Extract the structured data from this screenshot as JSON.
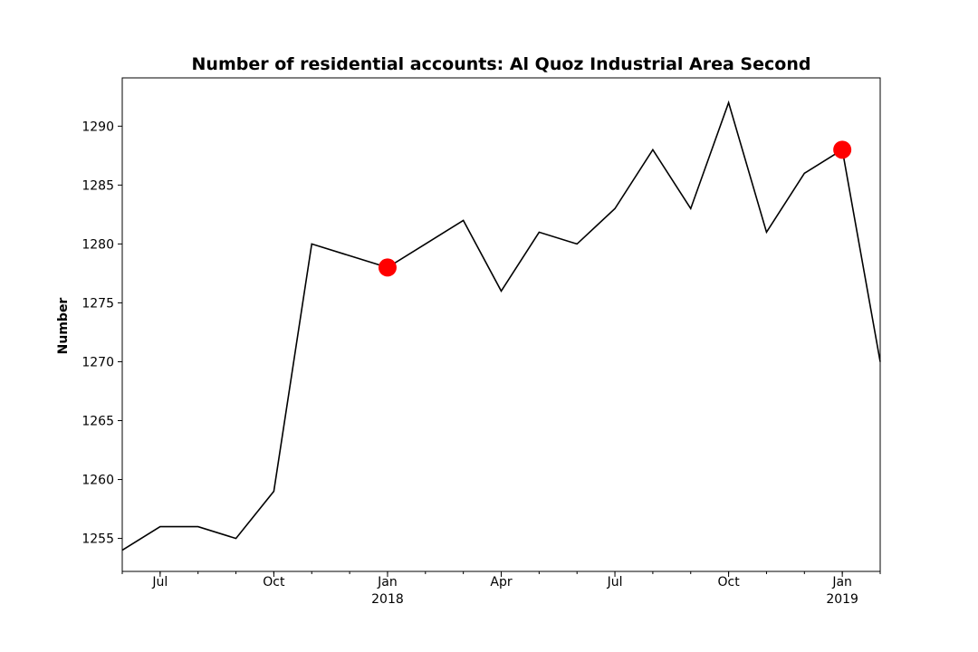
{
  "chart_data": {
    "type": "line",
    "title": "Number of residential accounts: Al Quoz Industrial Area Second",
    "xlabel": "",
    "ylabel": "Number",
    "x": [
      "2017-06",
      "2017-07",
      "2017-08",
      "2017-09",
      "2017-10",
      "2017-11",
      "2017-12",
      "2018-01",
      "2018-02",
      "2018-03",
      "2018-04",
      "2018-05",
      "2018-06",
      "2018-07",
      "2018-08",
      "2018-09",
      "2018-10",
      "2018-11",
      "2018-12",
      "2019-01",
      "2019-02"
    ],
    "series": [
      {
        "values": [
          1254,
          1256,
          1256,
          1255,
          1259,
          1280,
          1279,
          1278,
          1280,
          1282,
          1276,
          1281,
          1280,
          1283,
          1288,
          1283,
          1292,
          1281,
          1286,
          1288,
          1270
        ],
        "color": "#000000"
      }
    ],
    "highlighted_points": [
      {
        "x": "2018-01",
        "y": 1278,
        "color": "#ff0000"
      },
      {
        "x": "2019-01",
        "y": 1288,
        "color": "#ff0000"
      }
    ],
    "ylim": [
      1252.2,
      1294.1
    ],
    "xlim": [
      "2017-06",
      "2019-02"
    ],
    "yticks": [
      1255,
      1260,
      1265,
      1270,
      1275,
      1280,
      1285,
      1290
    ],
    "xticks": [
      {
        "x": "2017-07",
        "label": "Jul",
        "year": ""
      },
      {
        "x": "2017-10",
        "label": "Oct",
        "year": ""
      },
      {
        "x": "2018-01",
        "label": "Jan",
        "year": "2018"
      },
      {
        "x": "2018-04",
        "label": "Apr",
        "year": ""
      },
      {
        "x": "2018-07",
        "label": "Jul",
        "year": ""
      },
      {
        "x": "2018-10",
        "label": "Oct",
        "year": ""
      },
      {
        "x": "2019-01",
        "label": "Jan",
        "year": "2019"
      }
    ],
    "grid": false,
    "legend": "none"
  }
}
